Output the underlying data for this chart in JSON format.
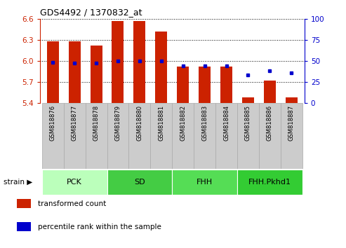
{
  "title": "GDS4492 / 1370832_at",
  "samples": [
    "GSM818876",
    "GSM818877",
    "GSM818878",
    "GSM818879",
    "GSM818880",
    "GSM818881",
    "GSM818882",
    "GSM818883",
    "GSM818884",
    "GSM818885",
    "GSM818886",
    "GSM818887"
  ],
  "transformed_count": [
    6.28,
    6.28,
    6.22,
    6.57,
    6.57,
    6.42,
    5.92,
    5.92,
    5.92,
    5.48,
    5.72,
    5.48
  ],
  "percentile_rank": [
    48,
    47,
    47,
    50,
    50,
    50,
    44,
    44,
    44,
    33,
    38,
    36
  ],
  "ylim_left": [
    5.4,
    6.6
  ],
  "ylim_right": [
    0,
    100
  ],
  "yticks_left": [
    5.4,
    5.7,
    6.0,
    6.3,
    6.6
  ],
  "yticks_right": [
    0,
    25,
    50,
    75,
    100
  ],
  "bar_color": "#cc2200",
  "dot_color": "#0000cc",
  "groups": [
    {
      "label": "PCK",
      "start": 0,
      "end": 3,
      "color": "#bbffbb"
    },
    {
      "label": "SD",
      "start": 3,
      "end": 6,
      "color": "#44cc44"
    },
    {
      "label": "FHH",
      "start": 6,
      "end": 9,
      "color": "#55dd55"
    },
    {
      "label": "FHH.Pkhd1",
      "start": 9,
      "end": 12,
      "color": "#33cc33"
    }
  ],
  "strain_label": "strain",
  "legend": [
    {
      "label": "transformed count",
      "color": "#cc2200"
    },
    {
      "label": "percentile rank within the sample",
      "color": "#0000cc"
    }
  ],
  "tick_color_left": "#cc2200",
  "tick_color_right": "#0000cc",
  "ybase": 5.4,
  "bar_width": 0.55,
  "xlabel_bg_color": "#cccccc",
  "xlabel_border_color": "#aaaaaa"
}
